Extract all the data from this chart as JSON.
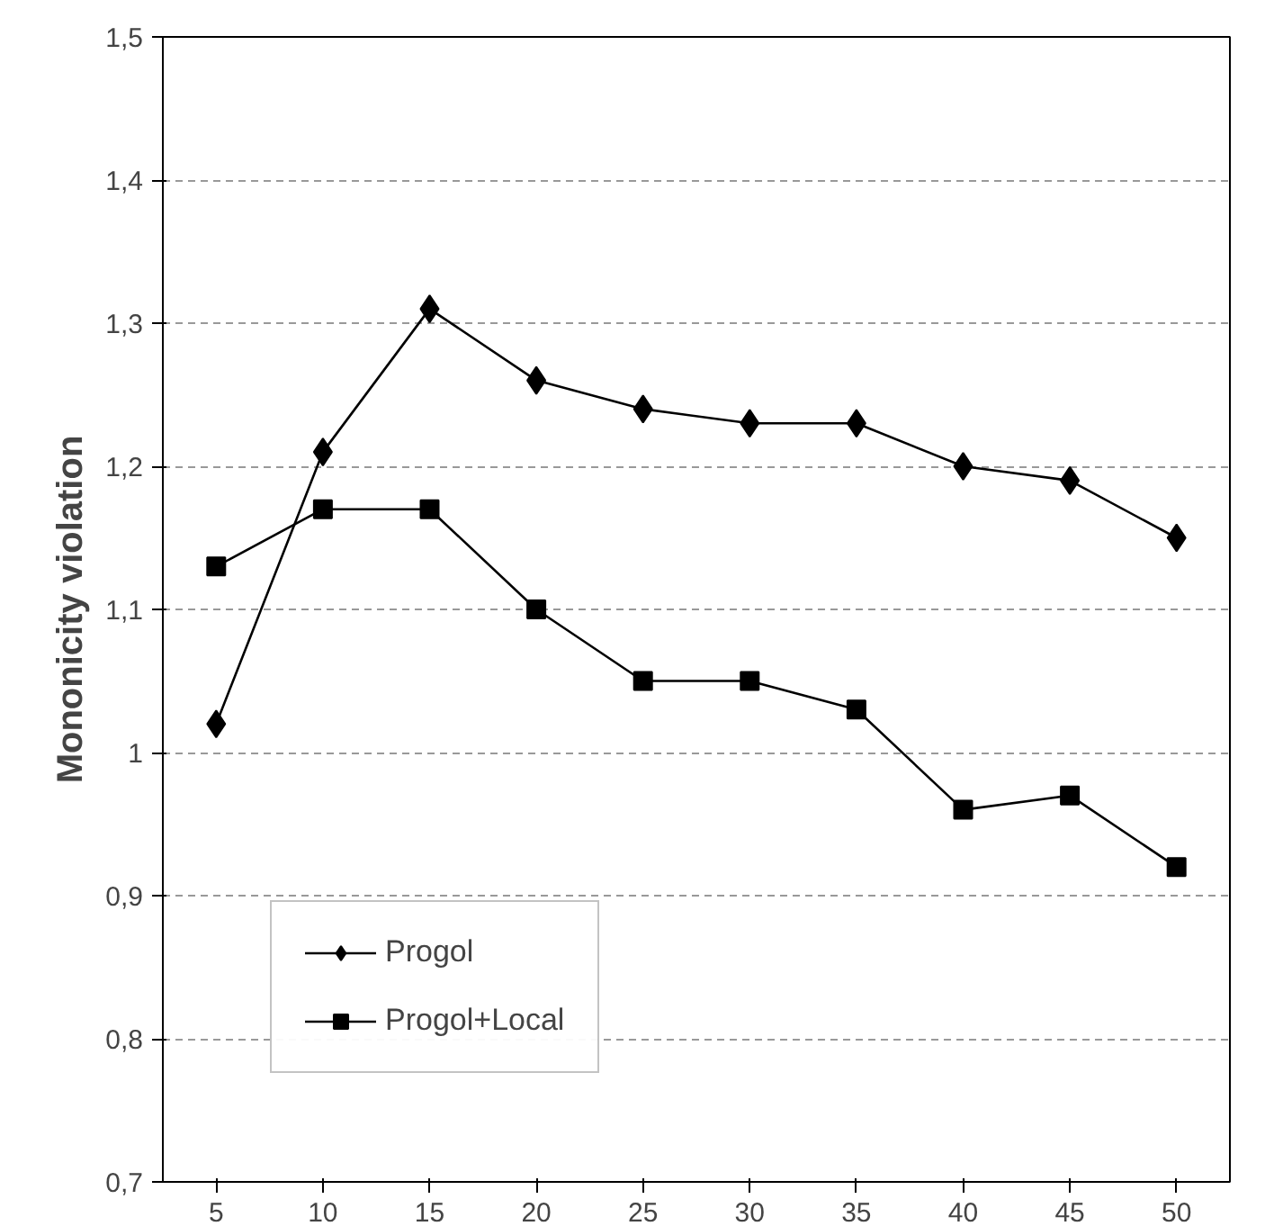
{
  "chart_data": {
    "type": "line",
    "ylabel": "Mononicity violation",
    "categories": [
      "5",
      "10",
      "15",
      "20",
      "25",
      "30",
      "35",
      "40",
      "45",
      "50"
    ],
    "series": [
      {
        "name": "Progol",
        "color": "#000000",
        "marker": "diamond",
        "values": [
          1.02,
          1.21,
          1.31,
          1.26,
          1.24,
          1.23,
          1.23,
          1.2,
          1.19,
          1.15
        ]
      },
      {
        "name": "Progol+Local",
        "color": "#000000",
        "marker": "square",
        "values": [
          1.13,
          1.17,
          1.17,
          1.1,
          1.05,
          1.05,
          1.03,
          0.96,
          0.97,
          0.92
        ]
      }
    ],
    "ylim": [
      0.7,
      1.5
    ],
    "yticks": [
      {
        "value": 0.7,
        "label": "0,7"
      },
      {
        "value": 0.8,
        "label": "0,8"
      },
      {
        "value": 0.9,
        "label": "0,9"
      },
      1,
      {
        "value": 1.1,
        "label": "1,1"
      },
      {
        "value": 1.2,
        "label": "1,2"
      },
      {
        "value": 1.3,
        "label": "1,3"
      },
      {
        "value": 1.4,
        "label": "1,4"
      },
      {
        "value": 1.5,
        "label": "1,5"
      }
    ],
    "grid": "y",
    "legend": "bottom left",
    "line_style": "solid"
  }
}
